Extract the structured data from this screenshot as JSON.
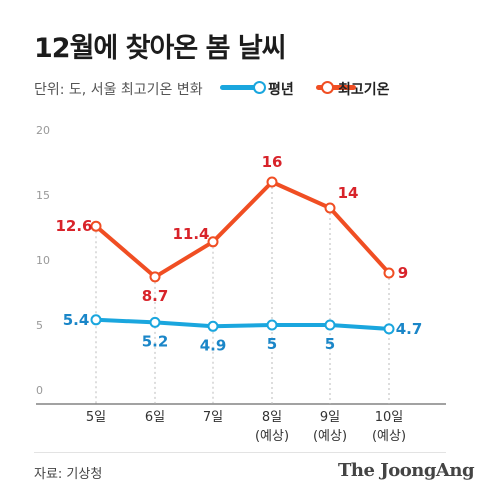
{
  "title": "12월에 찾아온 봄 날씨",
  "unit_label": "단위: 도, 서울 최고기온 변화",
  "source": "자료: 기상청",
  "brand": "The JoongAng",
  "colors": {
    "normal": "#1aa6de",
    "max": "#f04e23",
    "normal_label": "#1a86c8",
    "max_label": "#d8232a"
  },
  "chart_data": {
    "type": "line",
    "categories": [
      "5일",
      "6일",
      "7일",
      "8일\n(예상)",
      "9일\n(예상)",
      "10일\n(예상)"
    ],
    "series": [
      {
        "name": "평년",
        "values": [
          5.4,
          5.2,
          4.9,
          5,
          5,
          4.7
        ],
        "labels": [
          "5.4",
          "5.2",
          "4.9",
          "5",
          "5",
          "4.7"
        ]
      },
      {
        "name": "최고기온",
        "values": [
          12.6,
          8.7,
          11.4,
          16,
          14,
          9
        ],
        "labels": [
          "12.6",
          "8.7",
          "11.4",
          "16",
          "14",
          "9"
        ]
      }
    ],
    "yticks": [
      0,
      5,
      10,
      15,
      20
    ],
    "ylim": [
      0,
      20
    ],
    "grid": "vertical-dotted"
  }
}
